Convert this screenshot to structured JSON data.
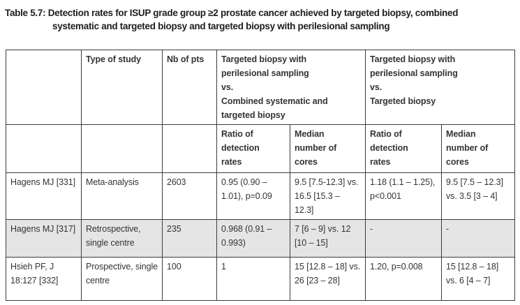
{
  "document": {
    "caption": {
      "line1": "Table 5.7: Detection rates for ISUP grade group ≥2 prostate cancer achieved by targeted biopsy, combined",
      "line2": "systematic and targeted biopsy and targeted biopsy with perilesional sampling"
    }
  },
  "table": {
    "headers": {
      "study": "",
      "type_of_study": "Type of study",
      "nb_of_pts": "Nb of pts",
      "group1": "Targeted biopsy with\nperilesional sampling\nvs.\nCombined systematic and\ntargeted biopsy",
      "group2": "Targeted biopsy with\nperilesional sampling\nvs.\nTargeted biopsy",
      "sub_ratio1": "Ratio of\ndetection\nrates",
      "sub_cores1": "Median\nnumber of\ncores",
      "sub_ratio2": "Ratio of\ndetection\nrates",
      "sub_cores2": "Median\nnumber of\ncores"
    },
    "rows": [
      {
        "study": "Hagens MJ [331]",
        "type": "Meta-analysis",
        "n": "2603",
        "ratio1": "0.95 (0.90 – 1.01), p=0.09",
        "cores1": "9.5 [7.5-12.3] vs. 16.5 [15.3 – 12.3]",
        "ratio2": "1.18 (1.1 – 1.25), p<0.001",
        "cores2": "9.5 [7.5 – 12.3] vs. 3.5 [3 – 4]"
      },
      {
        "study": "Hagens MJ [317]",
        "type": "Retrospective, single centre",
        "n": "235",
        "ratio1": "0.968 (0.91 – 0.993)",
        "cores1": "7 [6 – 9] vs. 12 [10 – 15]",
        "ratio2": "-",
        "cores2": "-"
      },
      {
        "study": "Hsieh PF, J 18:127 [332]",
        "type": "Prospective, single centre",
        "n": "100",
        "ratio1": "1",
        "cores1": "15 [12.8 – 18] vs. 26 [23 – 28]",
        "ratio2": "1.20, p=0.008",
        "cores2": "15 [12.8 – 18] vs. 6 [4 – 7]"
      }
    ]
  },
  "colors": {
    "border": "#3c3c3c",
    "text": "#343434",
    "title_text": "#1e1e1e",
    "row_shading": "#e5e5e5"
  }
}
